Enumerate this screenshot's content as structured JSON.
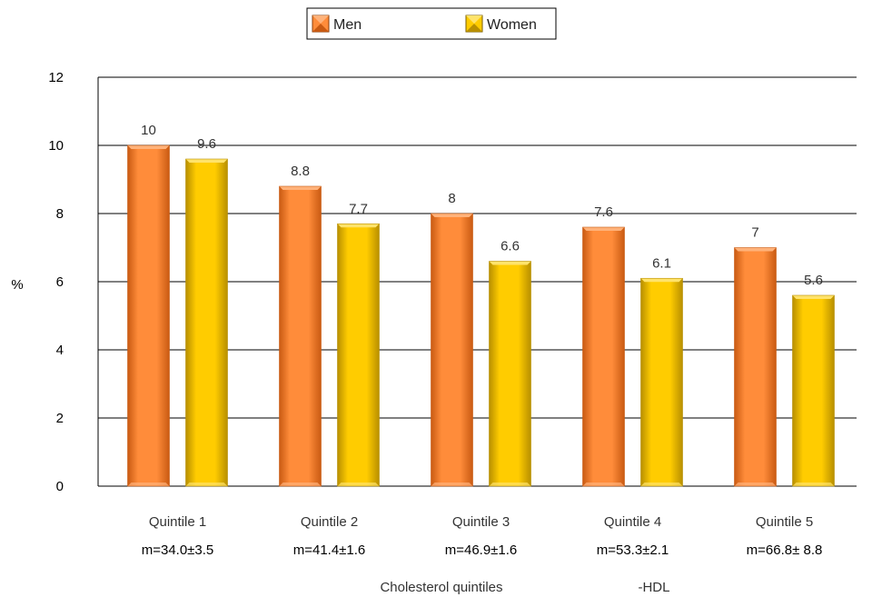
{
  "colors": {
    "men": "#ff8c3a",
    "men_dark": "#c95a12",
    "men_light": "#ffb27a",
    "women": "#ffcc00",
    "women_dark": "#b88f00",
    "women_light": "#ffe36b"
  },
  "chart_data": {
    "type": "bar",
    "categories": [
      "Quintile 1",
      "Quintile 2",
      "Quintile 3",
      "Quintile 4",
      "Quintile 5"
    ],
    "category_means": [
      "m=34.0±3.5",
      "m=41.4±1.6",
      "m=46.9±1.6",
      "m=53.3±2.1",
      "m=66.8± 8.8"
    ],
    "series": [
      {
        "name": "Men",
        "values": [
          10,
          8.8,
          8,
          7.6,
          7
        ]
      },
      {
        "name": "Women",
        "values": [
          9.6,
          7.7,
          6.6,
          6.1,
          5.6
        ]
      }
    ],
    "data_labels": [
      [
        "10",
        "8.8",
        "8",
        "7.6",
        "7"
      ],
      [
        "9.6",
        "7.7",
        "6.6",
        "6.1",
        "5.6"
      ]
    ],
    "ylabel": "%",
    "xlabel_left": "Cholesterol quintiles",
    "xlabel_right": "-HDL",
    "ylim": [
      0,
      12
    ],
    "yticks": [
      "0",
      "2",
      "4",
      "6",
      "8",
      "10",
      "12"
    ],
    "grid": true,
    "legend": "top-center"
  }
}
